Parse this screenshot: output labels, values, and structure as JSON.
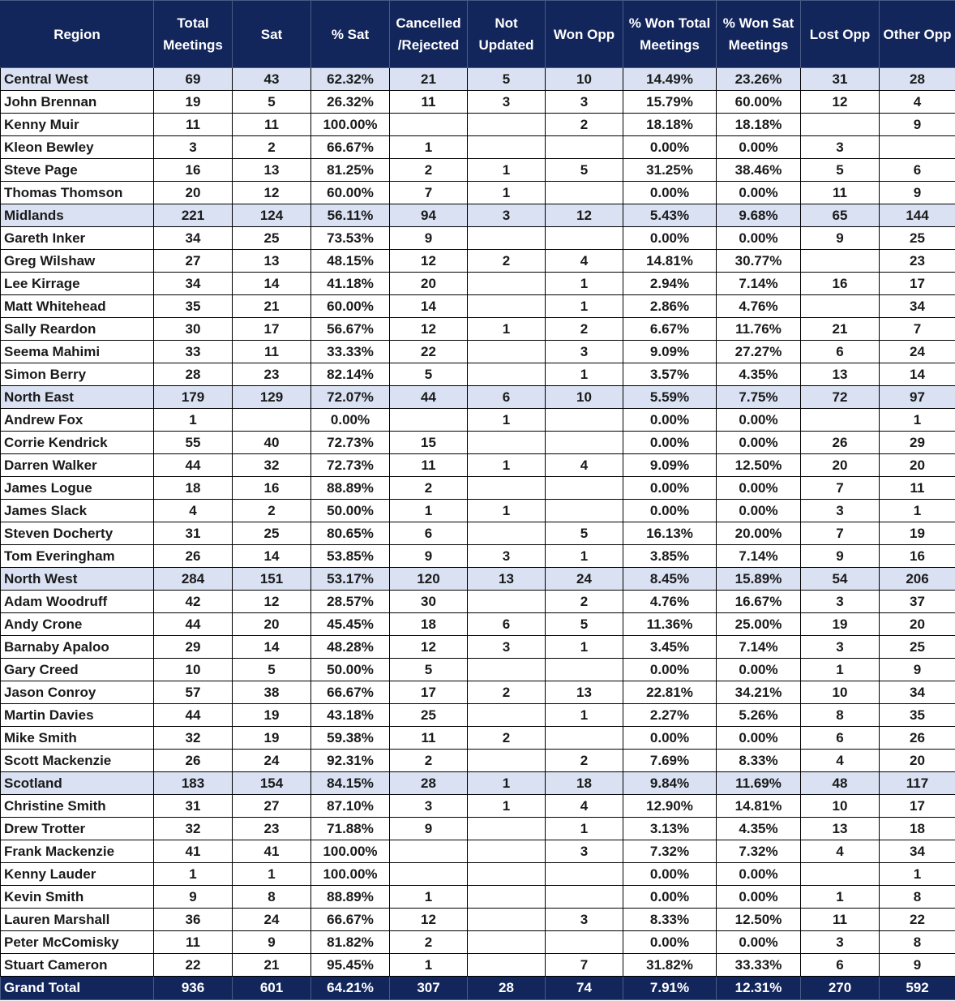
{
  "table": {
    "headers": [
      "Region",
      "Total\nMeetings",
      "Sat",
      "% Sat",
      "Cancelled\n/Rejected",
      "Not\nUpdated",
      "Won Opp",
      "% Won Total\nMeetings",
      "% Won Sat\nMeetings",
      "Lost Opp",
      "Other Opp"
    ],
    "rows": [
      {
        "type": "region",
        "cells": [
          "Central West",
          "69",
          "43",
          "62.32%",
          "21",
          "5",
          "10",
          "14.49%",
          "23.26%",
          "31",
          "28"
        ]
      },
      {
        "type": "person",
        "cells": [
          "John Brennan",
          "19",
          "5",
          "26.32%",
          "11",
          "3",
          "3",
          "15.79%",
          "60.00%",
          "12",
          "4"
        ]
      },
      {
        "type": "person",
        "cells": [
          "Kenny Muir",
          "11",
          "11",
          "100.00%",
          "",
          "",
          "2",
          "18.18%",
          "18.18%",
          "",
          "9"
        ]
      },
      {
        "type": "person",
        "cells": [
          "Kleon Bewley",
          "3",
          "2",
          "66.67%",
          "1",
          "",
          "",
          "0.00%",
          "0.00%",
          "3",
          ""
        ]
      },
      {
        "type": "person",
        "cells": [
          "Steve Page",
          "16",
          "13",
          "81.25%",
          "2",
          "1",
          "5",
          "31.25%",
          "38.46%",
          "5",
          "6"
        ]
      },
      {
        "type": "person",
        "cells": [
          "Thomas Thomson",
          "20",
          "12",
          "60.00%",
          "7",
          "1",
          "",
          "0.00%",
          "0.00%",
          "11",
          "9"
        ]
      },
      {
        "type": "region",
        "cells": [
          "Midlands",
          "221",
          "124",
          "56.11%",
          "94",
          "3",
          "12",
          "5.43%",
          "9.68%",
          "65",
          "144"
        ]
      },
      {
        "type": "person",
        "cells": [
          "Gareth Inker",
          "34",
          "25",
          "73.53%",
          "9",
          "",
          "",
          "0.00%",
          "0.00%",
          "9",
          "25"
        ]
      },
      {
        "type": "person",
        "cells": [
          "Greg Wilshaw",
          "27",
          "13",
          "48.15%",
          "12",
          "2",
          "4",
          "14.81%",
          "30.77%",
          "",
          "23"
        ]
      },
      {
        "type": "person",
        "cells": [
          "Lee Kirrage",
          "34",
          "14",
          "41.18%",
          "20",
          "",
          "1",
          "2.94%",
          "7.14%",
          "16",
          "17"
        ]
      },
      {
        "type": "person",
        "cells": [
          "Matt Whitehead",
          "35",
          "21",
          "60.00%",
          "14",
          "",
          "1",
          "2.86%",
          "4.76%",
          "",
          "34"
        ]
      },
      {
        "type": "person",
        "cells": [
          "Sally Reardon",
          "30",
          "17",
          "56.67%",
          "12",
          "1",
          "2",
          "6.67%",
          "11.76%",
          "21",
          "7"
        ]
      },
      {
        "type": "person",
        "cells": [
          "Seema Mahimi",
          "33",
          "11",
          "33.33%",
          "22",
          "",
          "3",
          "9.09%",
          "27.27%",
          "6",
          "24"
        ]
      },
      {
        "type": "person",
        "cells": [
          "Simon Berry",
          "28",
          "23",
          "82.14%",
          "5",
          "",
          "1",
          "3.57%",
          "4.35%",
          "13",
          "14"
        ]
      },
      {
        "type": "region",
        "cells": [
          "North East",
          "179",
          "129",
          "72.07%",
          "44",
          "6",
          "10",
          "5.59%",
          "7.75%",
          "72",
          "97"
        ]
      },
      {
        "type": "person",
        "cells": [
          "Andrew Fox",
          "1",
          "",
          "0.00%",
          "",
          "1",
          "",
          "0.00%",
          "0.00%",
          "",
          "1"
        ]
      },
      {
        "type": "person",
        "cells": [
          "Corrie Kendrick",
          "55",
          "40",
          "72.73%",
          "15",
          "",
          "",
          "0.00%",
          "0.00%",
          "26",
          "29"
        ]
      },
      {
        "type": "person",
        "cells": [
          "Darren Walker",
          "44",
          "32",
          "72.73%",
          "11",
          "1",
          "4",
          "9.09%",
          "12.50%",
          "20",
          "20"
        ]
      },
      {
        "type": "person",
        "cells": [
          "James Logue",
          "18",
          "16",
          "88.89%",
          "2",
          "",
          "",
          "0.00%",
          "0.00%",
          "7",
          "11"
        ]
      },
      {
        "type": "person",
        "cells": [
          "James Slack",
          "4",
          "2",
          "50.00%",
          "1",
          "1",
          "",
          "0.00%",
          "0.00%",
          "3",
          "1"
        ]
      },
      {
        "type": "person",
        "cells": [
          "Steven Docherty",
          "31",
          "25",
          "80.65%",
          "6",
          "",
          "5",
          "16.13%",
          "20.00%",
          "7",
          "19"
        ]
      },
      {
        "type": "person",
        "cells": [
          "Tom Everingham",
          "26",
          "14",
          "53.85%",
          "9",
          "3",
          "1",
          "3.85%",
          "7.14%",
          "9",
          "16"
        ]
      },
      {
        "type": "region",
        "cells": [
          "North West",
          "284",
          "151",
          "53.17%",
          "120",
          "13",
          "24",
          "8.45%",
          "15.89%",
          "54",
          "206"
        ]
      },
      {
        "type": "person",
        "cells": [
          "Adam Woodruff",
          "42",
          "12",
          "28.57%",
          "30",
          "",
          "2",
          "4.76%",
          "16.67%",
          "3",
          "37"
        ]
      },
      {
        "type": "person",
        "cells": [
          "Andy Crone",
          "44",
          "20",
          "45.45%",
          "18",
          "6",
          "5",
          "11.36%",
          "25.00%",
          "19",
          "20"
        ]
      },
      {
        "type": "person",
        "cells": [
          "Barnaby Apaloo",
          "29",
          "14",
          "48.28%",
          "12",
          "3",
          "1",
          "3.45%",
          "7.14%",
          "3",
          "25"
        ]
      },
      {
        "type": "person",
        "cells": [
          "Gary Creed",
          "10",
          "5",
          "50.00%",
          "5",
          "",
          "",
          "0.00%",
          "0.00%",
          "1",
          "9"
        ]
      },
      {
        "type": "person",
        "cells": [
          "Jason Conroy",
          "57",
          "38",
          "66.67%",
          "17",
          "2",
          "13",
          "22.81%",
          "34.21%",
          "10",
          "34"
        ]
      },
      {
        "type": "person",
        "cells": [
          "Martin Davies",
          "44",
          "19",
          "43.18%",
          "25",
          "",
          "1",
          "2.27%",
          "5.26%",
          "8",
          "35"
        ]
      },
      {
        "type": "person",
        "cells": [
          "Mike Smith",
          "32",
          "19",
          "59.38%",
          "11",
          "2",
          "",
          "0.00%",
          "0.00%",
          "6",
          "26"
        ]
      },
      {
        "type": "person",
        "cells": [
          "Scott Mackenzie",
          "26",
          "24",
          "92.31%",
          "2",
          "",
          "2",
          "7.69%",
          "8.33%",
          "4",
          "20"
        ]
      },
      {
        "type": "region",
        "cells": [
          "Scotland",
          "183",
          "154",
          "84.15%",
          "28",
          "1",
          "18",
          "9.84%",
          "11.69%",
          "48",
          "117"
        ]
      },
      {
        "type": "person",
        "cells": [
          "Christine Smith",
          "31",
          "27",
          "87.10%",
          "3",
          "1",
          "4",
          "12.90%",
          "14.81%",
          "10",
          "17"
        ]
      },
      {
        "type": "person",
        "cells": [
          "Drew Trotter",
          "32",
          "23",
          "71.88%",
          "9",
          "",
          "1",
          "3.13%",
          "4.35%",
          "13",
          "18"
        ]
      },
      {
        "type": "person",
        "cells": [
          "Frank Mackenzie",
          "41",
          "41",
          "100.00%",
          "",
          "",
          "3",
          "7.32%",
          "7.32%",
          "4",
          "34"
        ]
      },
      {
        "type": "person",
        "cells": [
          "Kenny Lauder",
          "1",
          "1",
          "100.00%",
          "",
          "",
          "",
          "0.00%",
          "0.00%",
          "",
          "1"
        ]
      },
      {
        "type": "person",
        "cells": [
          "Kevin Smith",
          "9",
          "8",
          "88.89%",
          "1",
          "",
          "",
          "0.00%",
          "0.00%",
          "1",
          "8"
        ]
      },
      {
        "type": "person",
        "cells": [
          "Lauren Marshall",
          "36",
          "24",
          "66.67%",
          "12",
          "",
          "3",
          "8.33%",
          "12.50%",
          "11",
          "22"
        ]
      },
      {
        "type": "person",
        "cells": [
          "Peter McComisky",
          "11",
          "9",
          "81.82%",
          "2",
          "",
          "",
          "0.00%",
          "0.00%",
          "3",
          "8"
        ]
      },
      {
        "type": "person",
        "cells": [
          "Stuart Cameron",
          "22",
          "21",
          "95.45%",
          "1",
          "",
          "7",
          "31.82%",
          "33.33%",
          "6",
          "9"
        ]
      },
      {
        "type": "grand",
        "cells": [
          "Grand Total",
          "936",
          "601",
          "64.21%",
          "307",
          "28",
          "74",
          "7.91%",
          "12.31%",
          "270",
          "592"
        ]
      }
    ]
  },
  "colors": {
    "header_bg": "#13265c",
    "header_text": "#ffffff",
    "region_row_bg": "#d9e1f2",
    "person_row_bg": "#ffffff",
    "grid_line": "#000000"
  }
}
